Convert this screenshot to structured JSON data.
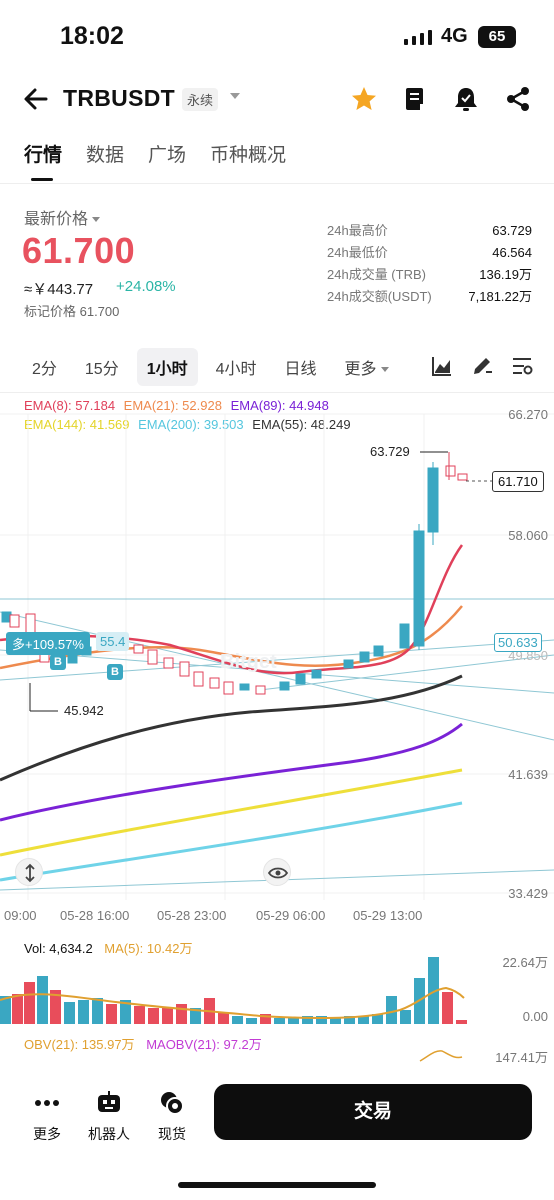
{
  "status": {
    "time": "18:02",
    "network": "4G",
    "battery": "65"
  },
  "header": {
    "symbol": "TRBUSDT",
    "badge": "永续",
    "icons": [
      "back-arrow-icon",
      "star-icon",
      "book-icon",
      "alert-bell-icon",
      "share-icon"
    ],
    "star_color": "#f5a623"
  },
  "tabs": [
    "行情",
    "数据",
    "广场",
    "币种概况"
  ],
  "price": {
    "label": "最新价格",
    "last": "61.700",
    "approx": "≈￥443.77",
    "change": "+24.08%",
    "mark": "标记价格 61.700",
    "color_up": "#e8525f",
    "color_change": "#2bb5a6"
  },
  "stats": [
    {
      "k": "24h最高价",
      "v": "63.729"
    },
    {
      "k": "24h最低价",
      "v": "46.564"
    },
    {
      "k": "24h成交量 (TRB)",
      "v": "136.19万"
    },
    {
      "k": "24h成交额(USDT)",
      "v": "7,181.22万"
    }
  ],
  "intervals": [
    "2分",
    "15分",
    "1小时",
    "4小时",
    "日线",
    "更多"
  ],
  "active_interval": "1小时",
  "ema_legend": [
    {
      "text": "EMA(8): 57.184",
      "color": "#e0405a"
    },
    {
      "text": "EMA(21): 52.928",
      "color": "#ee8a4e"
    },
    {
      "text": "EMA(89): 44.948",
      "color": "#7a22d6"
    },
    {
      "text": "EMA(144): 41.569",
      "color": "#eedf3a"
    },
    {
      "text": "EMA(200): 39.503",
      "color": "#6fd3e8"
    },
    {
      "text": "EMA(55): 48.249",
      "color": "#333333"
    }
  ],
  "chart": {
    "y_labels": [
      "66.270",
      "58.060",
      "49.850",
      "41.639",
      "33.429"
    ],
    "x_labels": [
      "09:00",
      "05-28 16:00",
      "05-28 23:00",
      "05-29 06:00",
      "05-29 13:00"
    ],
    "high_marker": "63.729",
    "low_marker": "45.942",
    "current_price": "61.710",
    "line_price": "50.633",
    "position": "多+109.57%",
    "position_extra": "55.4",
    "buy_mark": "B",
    "watermark": "Bitget"
  },
  "volume": {
    "vol_label": "Vol: 4,634.2",
    "ma_label": "MA(5): 10.42万",
    "y_top": "22.64万",
    "y_bottom": "0.00"
  },
  "obv": {
    "obv_label": "OBV(21): 135.97万",
    "maobv_label": "MAOBV(21): 97.2万",
    "y_label": "147.41万"
  },
  "bottom": {
    "more": "更多",
    "robot": "机器人",
    "spot": "现货",
    "trade": "交易"
  }
}
